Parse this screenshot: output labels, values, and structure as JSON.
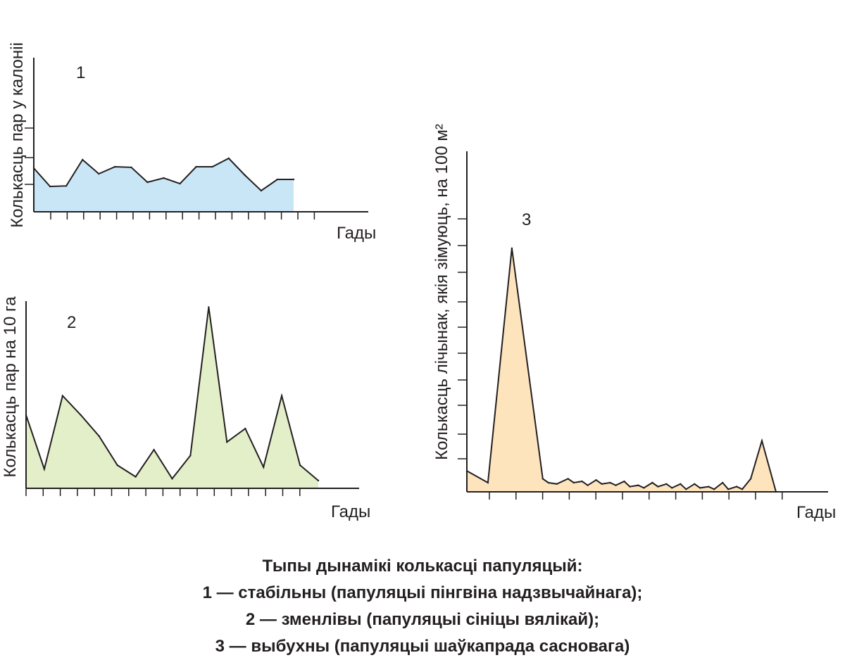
{
  "chart_data": [
    {
      "type": "area",
      "label": "1",
      "xlabel": "Гады",
      "ylabel": "Колькасць пар у калоніі",
      "fill_color": "#c9e6f7",
      "y_tick_count": 3,
      "x_tick_count": 17,
      "x": [
        0,
        1,
        2,
        3,
        4,
        5,
        6,
        7,
        8,
        9,
        10,
        11,
        12,
        13,
        14,
        15,
        16
      ],
      "values": [
        1.55,
        0.9,
        0.92,
        1.85,
        1.35,
        1.6,
        1.58,
        1.05,
        1.2,
        1.0,
        1.6,
        1.6,
        1.9,
        1.3,
        0.75,
        1.15,
        1.15
      ],
      "ylim": [
        0,
        5
      ]
    },
    {
      "type": "area",
      "label": "2",
      "xlabel": "Гады",
      "ylabel": "Колькасць пар на 10 га",
      "fill_color": "#e3efc8",
      "x_tick_count": 17,
      "x": [
        0,
        1,
        2,
        3,
        4,
        5,
        6,
        7,
        8,
        9,
        10,
        11,
        12,
        13,
        14,
        15,
        16
      ],
      "values": [
        38,
        10,
        48,
        38,
        27,
        12,
        6,
        20,
        5,
        17,
        94,
        24,
        31,
        11,
        48,
        12,
        4
      ],
      "ylim": [
        0,
        100
      ]
    },
    {
      "type": "area",
      "label": "3",
      "xlabel": "Гады",
      "ylabel": "Колькасць лічынак, якія зімуюць, на 100 м²",
      "fill_color": "#fde4bd",
      "y_tick_count": 10,
      "x_tick_count": 12,
      "x": [
        0,
        0.75,
        1.6,
        2.7,
        2.9,
        3.2,
        3.6,
        3.8,
        4.1,
        4.3,
        4.6,
        4.8,
        5.1,
        5.3,
        5.6,
        5.8,
        6.1,
        6.3,
        6.6,
        6.8,
        7.1,
        7.3,
        7.6,
        7.8,
        8.1,
        8.3,
        8.6,
        8.8,
        9.1,
        9.3,
        9.6,
        9.8,
        10.1,
        10.5,
        11.0
      ],
      "values": [
        0.8,
        0.35,
        9.3,
        0.5,
        0.35,
        0.3,
        0.5,
        0.35,
        0.4,
        0.25,
        0.45,
        0.3,
        0.35,
        0.25,
        0.4,
        0.2,
        0.25,
        0.15,
        0.35,
        0.2,
        0.3,
        0.15,
        0.3,
        0.1,
        0.3,
        0.15,
        0.2,
        0.1,
        0.35,
        0.1,
        0.2,
        0.1,
        0.5,
        1.95,
        0
      ],
      "ylim": [
        0,
        13
      ]
    }
  ],
  "caption": {
    "line1": "Тыпы дынамікі колькасці папуляцый:",
    "line2": "1 — стабільны (папуляцыі пінгвіна надзвычайнага);",
    "line3": "2 — зменлівы (папуляцыі сініцы вялікай);",
    "line4": "3 — выбухны (папуляцыі шаўкапрада сасновага)"
  }
}
